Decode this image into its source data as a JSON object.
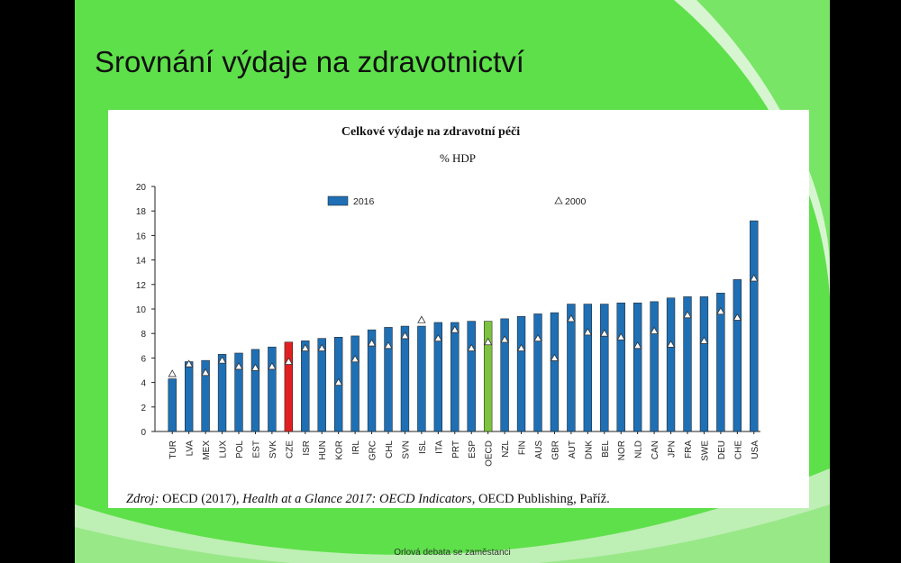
{
  "slide": {
    "title": "Srovnání výdaje na zdravotnictví",
    "footer": "Orlová debata se zaměstanci",
    "background_color": "#5ee04a"
  },
  "chart_data": {
    "type": "bar",
    "title": "Celkové výdaje na zdravotní péči",
    "subtitle": "% HDP",
    "source_prefix": "Zdroj:",
    "source_org": "OECD (2017),",
    "source_title": "Health at a Glance 2017: OECD Indicators,",
    "source_rest": "OECD Publishing, Paříž.",
    "ylim": [
      0,
      20
    ],
    "yticks": [
      0,
      2,
      4,
      6,
      8,
      10,
      12,
      14,
      16,
      18,
      20
    ],
    "grid": false,
    "legend_position": "top",
    "categories": [
      "TUR",
      "LVA",
      "MEX",
      "LUX",
      "POL",
      "EST",
      "SVK",
      "CZE",
      "ISR",
      "HUN",
      "KOR",
      "IRL",
      "GRC",
      "CHL",
      "SVN",
      "ISL",
      "ITA",
      "PRT",
      "ESP",
      "OECD",
      "NZL",
      "FIN",
      "AUS",
      "GBR",
      "AUT",
      "DNK",
      "BEL",
      "NOR",
      "NLD",
      "CAN",
      "JPN",
      "FRA",
      "SWE",
      "DEU",
      "CHE",
      "USA"
    ],
    "series": [
      {
        "name": "2016",
        "marker": "bar",
        "color": "#1f6fb4",
        "values": [
          4.3,
          5.7,
          5.8,
          6.3,
          6.4,
          6.7,
          6.9,
          7.3,
          7.4,
          7.6,
          7.7,
          7.8,
          8.3,
          8.5,
          8.6,
          8.6,
          8.9,
          8.9,
          9.0,
          9.0,
          9.2,
          9.4,
          9.6,
          9.7,
          10.4,
          10.4,
          10.4,
          10.5,
          10.5,
          10.6,
          10.9,
          11.0,
          11.0,
          11.3,
          12.4,
          17.2
        ]
      },
      {
        "name": "2000",
        "marker": "triangle",
        "values": [
          4.7,
          5.5,
          4.8,
          5.8,
          5.3,
          5.2,
          5.3,
          5.7,
          6.8,
          6.8,
          4.0,
          5.9,
          7.2,
          7.0,
          7.8,
          9.1,
          7.6,
          8.3,
          6.8,
          7.3,
          7.5,
          6.8,
          7.6,
          6.0,
          9.2,
          8.1,
          8.0,
          7.7,
          7.0,
          8.2,
          7.1,
          9.5,
          7.4,
          9.8,
          9.3,
          12.5
        ]
      }
    ],
    "highlight_colors": {
      "CZE": "#e02020",
      "OECD": "#7ec241"
    }
  }
}
